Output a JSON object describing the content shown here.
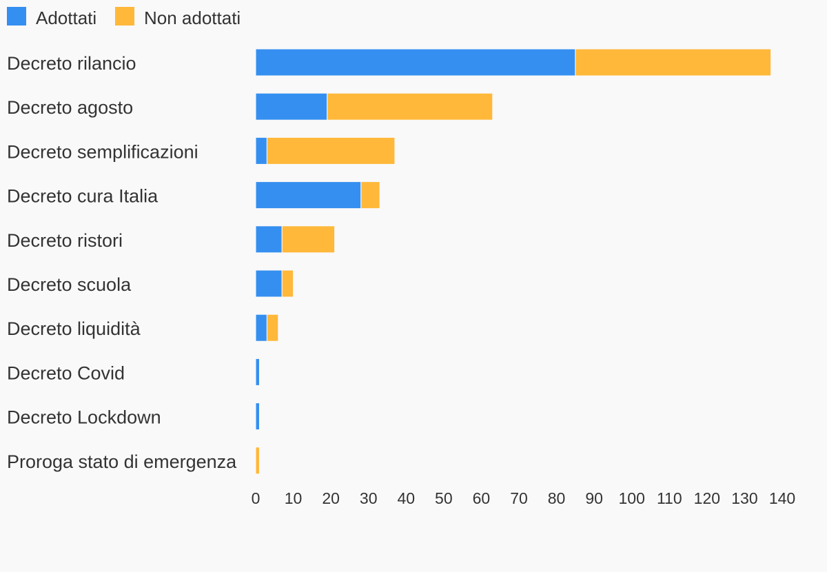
{
  "chart_data": {
    "type": "bar",
    "orientation": "horizontal",
    "stacked": true,
    "categories": [
      "Decreto rilancio",
      "Decreto agosto",
      "Decreto semplificazioni",
      "Decreto cura Italia",
      "Decreto ristori",
      "Decreto scuola",
      "Decreto liquidità",
      "Decreto Covid",
      "Decreto Lockdown",
      "Proroga stato di emergenza"
    ],
    "series": [
      {
        "name": "Adottati",
        "color": "#358ff0",
        "values": [
          85,
          19,
          3,
          28,
          7,
          7,
          3,
          1,
          1,
          0
        ]
      },
      {
        "name": "Non adottati",
        "color": "#ffb83a",
        "values": [
          52,
          44,
          34,
          5,
          14,
          3,
          3,
          0,
          0,
          1
        ]
      }
    ],
    "xlim": [
      0,
      140
    ],
    "xticks": [
      0,
      10,
      20,
      30,
      40,
      50,
      60,
      70,
      80,
      90,
      100,
      110,
      120,
      130,
      140
    ],
    "legend": "top-left",
    "grid": false
  }
}
